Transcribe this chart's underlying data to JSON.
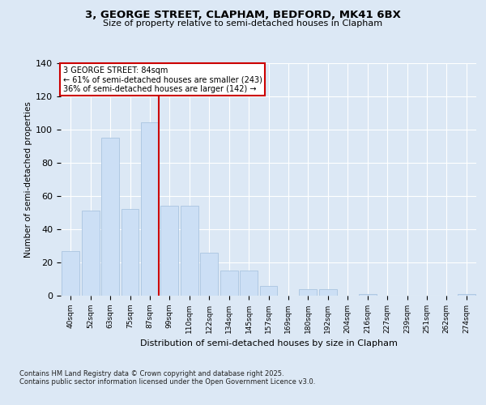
{
  "title": "3, GEORGE STREET, CLAPHAM, BEDFORD, MK41 6BX",
  "subtitle": "Size of property relative to semi-detached houses in Clapham",
  "xlabel": "Distribution of semi-detached houses by size in Clapham",
  "ylabel": "Number of semi-detached properties",
  "categories": [
    "40sqm",
    "52sqm",
    "63sqm",
    "75sqm",
    "87sqm",
    "99sqm",
    "110sqm",
    "122sqm",
    "134sqm",
    "145sqm",
    "157sqm",
    "169sqm",
    "180sqm",
    "192sqm",
    "204sqm",
    "216sqm",
    "227sqm",
    "239sqm",
    "251sqm",
    "262sqm",
    "274sqm"
  ],
  "values": [
    27,
    51,
    95,
    52,
    104,
    54,
    54,
    26,
    15,
    15,
    6,
    0,
    4,
    4,
    0,
    1,
    0,
    0,
    0,
    0,
    1
  ],
  "bar_color": "#ccdff5",
  "bar_edgecolor": "#aac4e0",
  "vline_x_index": 4,
  "vline_color": "#cc0000",
  "annotation_title": "3 GEORGE STREET: 84sqm",
  "annotation_line1": "← 61% of semi-detached houses are smaller (243)",
  "annotation_line2": "36% of semi-detached houses are larger (142) →",
  "annotation_box_edgecolor": "#cc0000",
  "annotation_box_facecolor": "#ffffff",
  "ylim": [
    0,
    140
  ],
  "yticks": [
    0,
    20,
    40,
    60,
    80,
    100,
    120,
    140
  ],
  "background_color": "#dce8f5",
  "footer1": "Contains HM Land Registry data © Crown copyright and database right 2025.",
  "footer2": "Contains public sector information licensed under the Open Government Licence v3.0."
}
